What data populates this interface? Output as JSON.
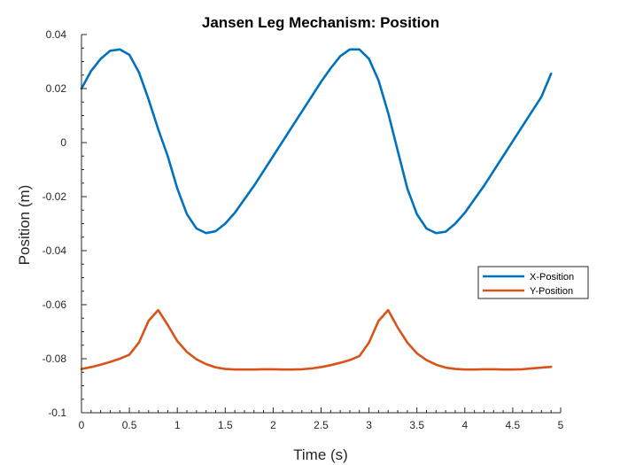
{
  "chart_data": {
    "type": "line",
    "title": "Jansen Leg Mechanism: Position",
    "xlabel": "Time (s)",
    "ylabel": "Position (m)",
    "xlim": [
      0,
      5
    ],
    "ylim": [
      -0.1,
      0.04
    ],
    "xticks": [
      0,
      0.5,
      1,
      1.5,
      2,
      2.5,
      3,
      3.5,
      4,
      4.5,
      5
    ],
    "xtick_labels": [
      "0",
      "0.5",
      "1",
      "1.5",
      "2",
      "2.5",
      "3",
      "3.5",
      "4",
      "4.5",
      "5"
    ],
    "yticks": [
      -0.1,
      -0.08,
      -0.06,
      -0.04,
      -0.02,
      0,
      0.02,
      0.04
    ],
    "ytick_labels": [
      "-0.1",
      "-0.08",
      "-0.06",
      "-0.04",
      "-0.02",
      "0",
      "0.02",
      "0.04"
    ],
    "grid": false,
    "legend_position": "right",
    "series": [
      {
        "name": "X-Position",
        "color": "#0072BD",
        "x": [
          0,
          0.1,
          0.2,
          0.3,
          0.4,
          0.5,
          0.6,
          0.7,
          0.8,
          0.9,
          1.0,
          1.1,
          1.2,
          1.3,
          1.4,
          1.5,
          1.6,
          1.7,
          1.8,
          1.9,
          2.0,
          2.1,
          2.2,
          2.3,
          2.4,
          2.5,
          2.6,
          2.7,
          2.8,
          2.9,
          3.0,
          3.1,
          3.2,
          3.3,
          3.4,
          3.5,
          3.6,
          3.7,
          3.8,
          3.9,
          4.0,
          4.1,
          4.2,
          4.3,
          4.4,
          4.5,
          4.6,
          4.7,
          4.8,
          4.9
        ],
        "y": [
          0.02,
          0.0265,
          0.031,
          0.034,
          0.0345,
          0.0325,
          0.026,
          0.016,
          0.005,
          -0.005,
          -0.017,
          -0.0265,
          -0.0318,
          -0.0335,
          -0.0328,
          -0.03,
          -0.026,
          -0.021,
          -0.016,
          -0.0105,
          -0.005,
          0.0005,
          0.006,
          0.0115,
          0.017,
          0.0225,
          0.0275,
          0.032,
          0.0345,
          0.0345,
          0.031,
          0.023,
          0.011,
          -0.003,
          -0.017,
          -0.0265,
          -0.0318,
          -0.0335,
          -0.033,
          -0.03,
          -0.026,
          -0.021,
          -0.016,
          -0.0105,
          -0.005,
          0.0005,
          0.006,
          0.0115,
          0.017,
          0.0255
        ]
      },
      {
        "name": "Y-Position",
        "color": "#D95319",
        "x": [
          0,
          0.1,
          0.2,
          0.3,
          0.4,
          0.5,
          0.6,
          0.7,
          0.8,
          0.9,
          1.0,
          1.1,
          1.2,
          1.3,
          1.4,
          1.5,
          1.6,
          1.7,
          1.8,
          1.9,
          2.0,
          2.1,
          2.2,
          2.3,
          2.4,
          2.5,
          2.6,
          2.7,
          2.8,
          2.9,
          3.0,
          3.1,
          3.2,
          3.3,
          3.4,
          3.5,
          3.6,
          3.7,
          3.8,
          3.9,
          4.0,
          4.1,
          4.2,
          4.3,
          4.4,
          4.5,
          4.6,
          4.7,
          4.8,
          4.9
        ],
        "y": [
          -0.0838,
          -0.0831,
          -0.0822,
          -0.0812,
          -0.08,
          -0.0785,
          -0.074,
          -0.066,
          -0.062,
          -0.0675,
          -0.0735,
          -0.0775,
          -0.0802,
          -0.082,
          -0.0832,
          -0.0838,
          -0.084,
          -0.084,
          -0.084,
          -0.0839,
          -0.0839,
          -0.084,
          -0.084,
          -0.0839,
          -0.0836,
          -0.0831,
          -0.0824,
          -0.0815,
          -0.0805,
          -0.079,
          -0.074,
          -0.066,
          -0.062,
          -0.0685,
          -0.074,
          -0.078,
          -0.0805,
          -0.0822,
          -0.0833,
          -0.0838,
          -0.084,
          -0.084,
          -0.0839,
          -0.0839,
          -0.084,
          -0.084,
          -0.0839,
          -0.0836,
          -0.0833,
          -0.083
        ]
      }
    ]
  }
}
